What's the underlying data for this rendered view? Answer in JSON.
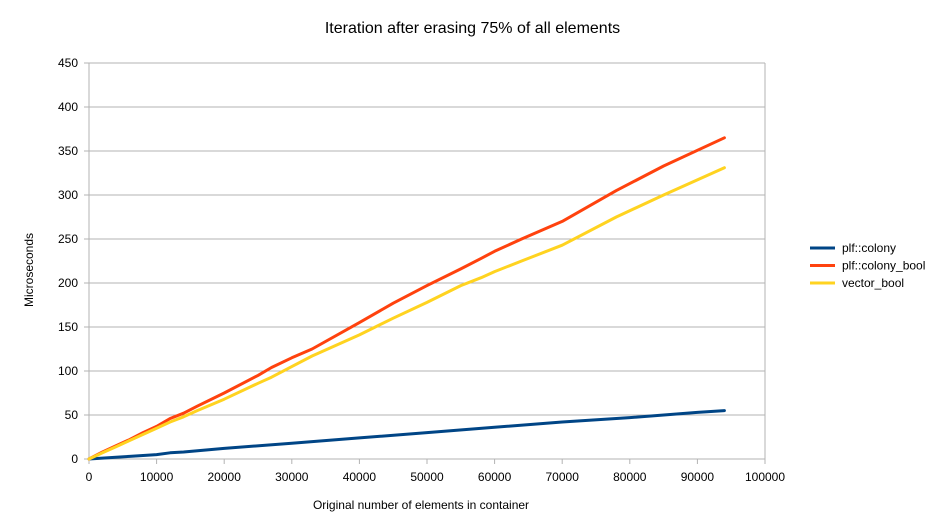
{
  "chart_data": {
    "type": "line",
    "title": "Iteration after erasing 75% of all elements",
    "xlabel": "Original number of elements in container",
    "ylabel": "Microseconds",
    "xlim": [
      0,
      100000
    ],
    "ylim": [
      0,
      450
    ],
    "x_ticks": [
      0,
      10000,
      20000,
      30000,
      40000,
      50000,
      60000,
      70000,
      80000,
      90000,
      100000
    ],
    "y_ticks": [
      0,
      50,
      100,
      150,
      200,
      250,
      300,
      350,
      400,
      450
    ],
    "x_tick_labels": [
      "0",
      "10000",
      "20000",
      "30000",
      "40000",
      "50000",
      "60000",
      "70000",
      "80000",
      "90000",
      "100000"
    ],
    "y_tick_labels": [
      "0",
      "50",
      "100",
      "150",
      "200",
      "250",
      "300",
      "350",
      "400",
      "450"
    ],
    "grid": "horizontal",
    "legend_position": "right",
    "series": [
      {
        "name": "plf::colony",
        "color": "#004586",
        "x": [
          0,
          2000,
          4000,
          6000,
          8000,
          10000,
          12000,
          14000,
          20000,
          30000,
          40000,
          50000,
          60000,
          70000,
          80000,
          90000,
          94000
        ],
        "y": [
          0,
          1,
          2,
          3,
          4,
          5,
          7,
          8,
          12,
          18,
          24,
          30,
          36,
          42,
          47,
          53,
          55
        ]
      },
      {
        "name": "plf::colony_bool",
        "color": "#ff420e",
        "x": [
          0,
          2000,
          4000,
          6000,
          8000,
          10000,
          12000,
          14000,
          16000,
          20000,
          25000,
          27000,
          30000,
          33000,
          40000,
          45000,
          50000,
          55000,
          58000,
          60000,
          64000,
          70000,
          78000,
          85000,
          94000
        ],
        "y": [
          0,
          8,
          15,
          22,
          30,
          37,
          46,
          52,
          60,
          75,
          95,
          104,
          115,
          125,
          155,
          177,
          197,
          216,
          228,
          236,
          250,
          270,
          305,
          333,
          365
        ]
      },
      {
        "name": "vector_bool",
        "color": "#ffd320",
        "x": [
          0,
          2000,
          4000,
          6000,
          8000,
          10000,
          12000,
          14000,
          16000,
          20000,
          25000,
          27000,
          30000,
          33000,
          40000,
          45000,
          50000,
          55000,
          58000,
          60000,
          64000,
          70000,
          78000,
          85000,
          94000
        ],
        "y": [
          0,
          7,
          14,
          21,
          28,
          35,
          42,
          48,
          55,
          68,
          86,
          93,
          105,
          117,
          141,
          160,
          178,
          197,
          206,
          213,
          225,
          243,
          275,
          300,
          331
        ]
      }
    ]
  }
}
